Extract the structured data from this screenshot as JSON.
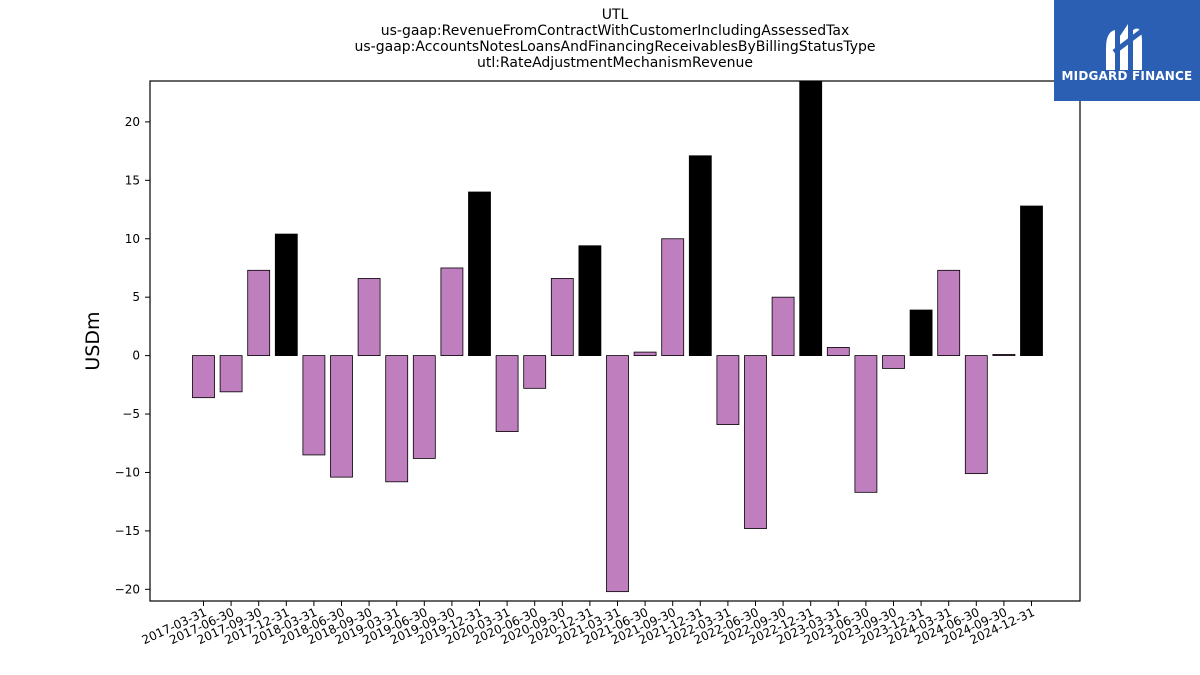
{
  "title_lines": [
    "UTL",
    "us-gaap:RevenueFromContractWithCustomerIncludingAssessedTax",
    "us-gaap:AccountsNotesLoansAndFinancingReceivablesByBillingStatusType",
    "utl:RateAdjustmentMechanismRevenue"
  ],
  "brand": {
    "name": "MIDGARD FINANCE",
    "color": "#2b5fb4"
  },
  "chart_data": {
    "type": "bar",
    "ylabel": "USDm",
    "xlabel": "",
    "ylim": [
      -21,
      23.5
    ],
    "yticks": [
      -20,
      -15,
      -10,
      -5,
      0,
      5,
      10,
      15,
      20
    ],
    "ytick_labels": [
      "−20",
      "−15",
      "−10",
      "−5",
      "0",
      "5",
      "10",
      "15",
      "20"
    ],
    "colors": {
      "quarter": "#bf7fbf",
      "year_end": "#000000"
    },
    "categories": [
      "2017-03-31",
      "2017-06-30",
      "2017-09-30",
      "2017-12-31",
      "2018-03-31",
      "2018-06-30",
      "2018-09-30",
      "2019-03-31",
      "2019-06-30",
      "2019-09-30",
      "2019-12-31",
      "2020-03-31",
      "2020-06-30",
      "2020-09-30",
      "2020-12-31",
      "2021-03-31",
      "2021-06-30",
      "2021-09-30",
      "2021-12-31",
      "2022-03-31",
      "2022-06-30",
      "2022-09-30",
      "2022-12-31",
      "2023-03-31",
      "2023-06-30",
      "2023-09-30",
      "2023-12-31",
      "2024-03-31",
      "2024-06-30",
      "2024-09-30",
      "2024-12-31"
    ],
    "values": [
      -3.6,
      -3.1,
      7.3,
      10.4,
      -8.5,
      -10.4,
      6.6,
      -10.8,
      -8.8,
      7.5,
      14.0,
      -6.5,
      -2.8,
      6.6,
      9.4,
      -20.2,
      0.3,
      10.0,
      17.1,
      -5.9,
      -14.8,
      5.0,
      23.5,
      0.7,
      -11.7,
      -1.1,
      3.9,
      7.3,
      -10.1,
      0.1,
      12.8
    ],
    "year_end": [
      false,
      false,
      false,
      true,
      false,
      false,
      false,
      false,
      false,
      false,
      true,
      false,
      false,
      false,
      true,
      false,
      false,
      false,
      true,
      false,
      false,
      false,
      true,
      false,
      false,
      false,
      true,
      false,
      false,
      false,
      true
    ],
    "grid": false,
    "legend": "none"
  }
}
